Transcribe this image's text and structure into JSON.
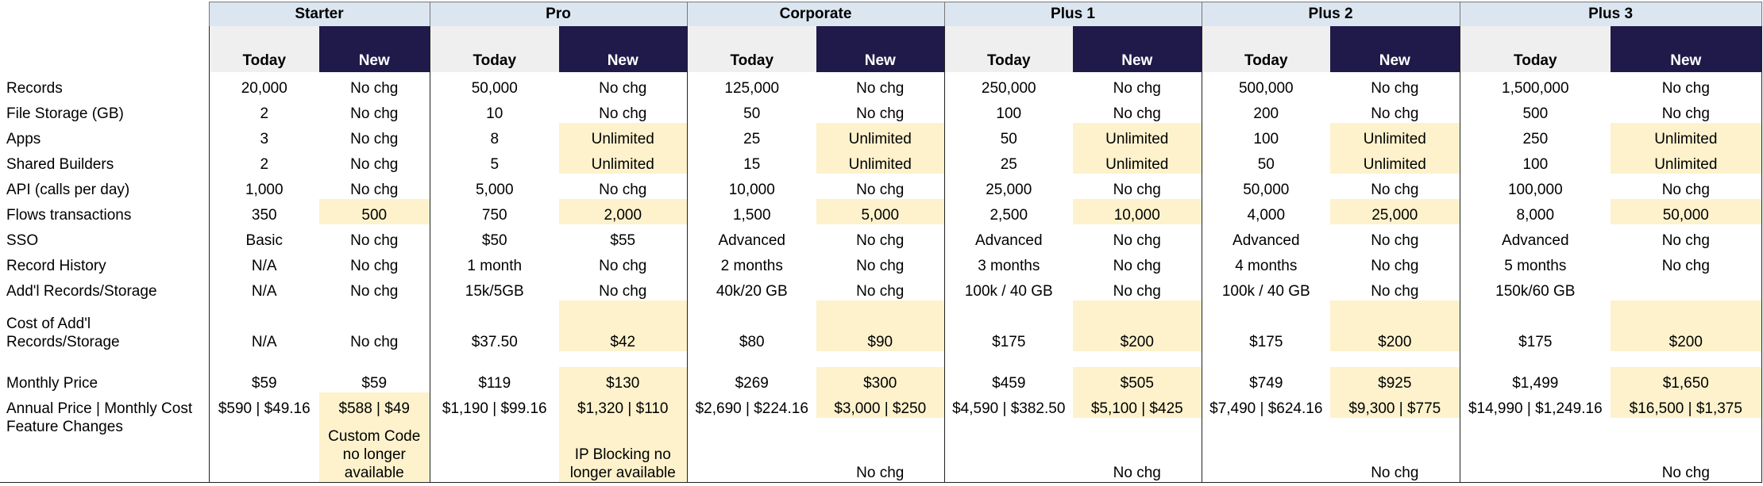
{
  "column_labels": {
    "today": "Today",
    "new": "New"
  },
  "row_labels": [
    "Records",
    "File Storage (GB)",
    "Apps",
    "Shared Builders",
    "API (calls per day)",
    "Flows transactions",
    "SSO",
    "Record History",
    "Add'l Records/Storage",
    "Cost of Add'l\nRecords/Storage",
    "Monthly Price",
    "Annual Price | Monthly Cost",
    "Feature Changes"
  ],
  "tiers": [
    {
      "name": "Starter",
      "today": [
        "20,000",
        "2",
        "3",
        "2",
        "1,000",
        "350",
        "Basic",
        "N/A",
        "N/A",
        "N/A",
        "$59",
        "$590 | $49.16",
        null
      ],
      "new": [
        "No chg",
        "No chg",
        "No chg",
        "No chg",
        "No chg",
        "500",
        "No chg",
        "No chg",
        "No chg",
        "No chg",
        "$59",
        "$588 | $49",
        "Custom Code no longer available"
      ],
      "new_highlight": [
        false,
        false,
        false,
        false,
        false,
        true,
        false,
        false,
        false,
        false,
        false,
        true,
        true
      ]
    },
    {
      "name": "Pro",
      "today": [
        "50,000",
        "10",
        "8",
        "5",
        "5,000",
        "750",
        "$50",
        "1 month",
        "15k/5GB",
        "$37.50",
        "$119",
        "$1,190 | $99.16",
        null
      ],
      "new": [
        "No chg",
        "No chg",
        "Unlimited",
        "Unlimited",
        "No chg",
        "2,000",
        "$55",
        "No chg",
        "No chg",
        "$42",
        "$130",
        "$1,320 | $110",
        "IP Blocking no longer available"
      ],
      "new_highlight": [
        false,
        false,
        true,
        true,
        false,
        true,
        false,
        false,
        false,
        true,
        true,
        true,
        true
      ]
    },
    {
      "name": "Corporate",
      "today": [
        "125,000",
        "50",
        "25",
        "15",
        "10,000",
        "1,500",
        "Advanced",
        "2 months",
        "40k/20 GB",
        "$80",
        "$269",
        "$2,690 | $224.16",
        null
      ],
      "new": [
        "No chg",
        "No chg",
        "Unlimited",
        "Unlimited",
        "No chg",
        "5,000",
        "No chg",
        "No chg",
        "No chg",
        "$90",
        "$300",
        "$3,000 | $250",
        "No chg"
      ],
      "new_highlight": [
        false,
        false,
        true,
        true,
        false,
        true,
        false,
        false,
        false,
        true,
        true,
        true,
        false
      ]
    },
    {
      "name": "Plus 1",
      "today": [
        "250,000",
        "100",
        "50",
        "25",
        "25,000",
        "2,500",
        "Advanced",
        "3 months",
        "100k / 40 GB",
        "$175",
        "$459",
        "$4,590 | $382.50",
        null
      ],
      "new": [
        "No chg",
        "No chg",
        "Unlimited",
        "Unlimited",
        "No chg",
        "10,000",
        "No chg",
        "No chg",
        "No chg",
        "$200",
        "$505",
        "$5,100 | $425",
        "No chg"
      ],
      "new_highlight": [
        false,
        false,
        true,
        true,
        false,
        true,
        false,
        false,
        false,
        true,
        true,
        true,
        false
      ]
    },
    {
      "name": "Plus 2",
      "today": [
        "500,000",
        "200",
        "100",
        "50",
        "50,000",
        "4,000",
        "Advanced",
        "4 months",
        "100k / 40 GB",
        "$175",
        "$749",
        "$7,490 | $624.16",
        null
      ],
      "new": [
        "No chg",
        "No chg",
        "Unlimited",
        "Unlimited",
        "No chg",
        "25,000",
        "No chg",
        "No chg",
        "No chg",
        "$200",
        "$925",
        "$9,300 | $775",
        "No chg"
      ],
      "new_highlight": [
        false,
        false,
        true,
        true,
        false,
        true,
        false,
        false,
        false,
        true,
        true,
        true,
        false
      ]
    },
    {
      "name": "Plus 3",
      "today": [
        "1,500,000",
        "500",
        "250",
        "100",
        "100,000",
        "8,000",
        "Advanced",
        "5 months",
        "150k/60 GB",
        "$175",
        "$1,499",
        "$14,990 | $1,249.16",
        null
      ],
      "new": [
        "No chg",
        "No chg",
        "Unlimited",
        "Unlimited",
        "No chg",
        "50,000",
        "No chg",
        "No chg",
        null,
        "$200",
        "$1,650",
        "$16,500 | $1,375",
        "No chg"
      ],
      "new_highlight": [
        false,
        false,
        true,
        true,
        false,
        true,
        false,
        false,
        false,
        true,
        true,
        true,
        false
      ]
    }
  ]
}
